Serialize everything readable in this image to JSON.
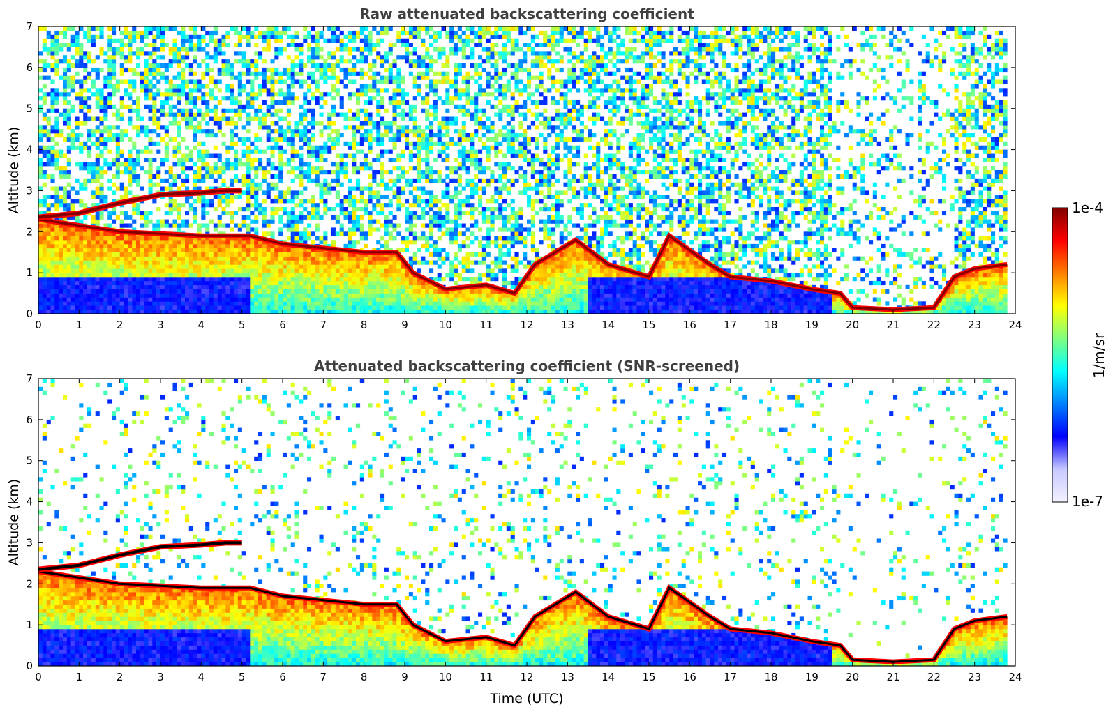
{
  "chart_data": [
    {
      "type": "heatmap",
      "title": "Raw attenuated backscattering coefficient",
      "xlabel": "",
      "ylabel": "Altitude (km)",
      "xlim": [
        0,
        24
      ],
      "ylim": [
        0,
        7
      ],
      "x_ticks": [
        0,
        1,
        2,
        3,
        4,
        5,
        6,
        7,
        8,
        9,
        10,
        11,
        12,
        13,
        14,
        15,
        16,
        17,
        18,
        19,
        20,
        21,
        22,
        23,
        24
      ],
      "y_ticks": [
        0,
        1,
        2,
        3,
        4,
        5,
        6,
        7
      ],
      "screened": false,
      "features": {
        "elevated_layer": [
          [
            0,
            2.35
          ],
          [
            1,
            2.45
          ],
          [
            2,
            2.7
          ],
          [
            3,
            2.9
          ],
          [
            4,
            2.95
          ],
          [
            4.6,
            3.0
          ],
          [
            5.0,
            3.0
          ]
        ],
        "aerosol_layer_top": [
          [
            0,
            2.3
          ],
          [
            2,
            2.0
          ],
          [
            4,
            1.9
          ],
          [
            5.2,
            1.9
          ],
          [
            6,
            1.7
          ],
          [
            7,
            1.6
          ],
          [
            8,
            1.5
          ],
          [
            8.8,
            1.5
          ],
          [
            9.2,
            1.0
          ],
          [
            10,
            0.6
          ],
          [
            11,
            0.7
          ],
          [
            11.7,
            0.5
          ],
          [
            12.2,
            1.2
          ],
          [
            13.2,
            1.8
          ],
          [
            14,
            1.2
          ],
          [
            15,
            0.9
          ],
          [
            15.5,
            1.9
          ],
          [
            16.5,
            1.2
          ],
          [
            17,
            0.9
          ],
          [
            18,
            0.8
          ],
          [
            19,
            0.6
          ],
          [
            19.7,
            0.5
          ],
          [
            20,
            0.15
          ],
          [
            21,
            0.1
          ],
          [
            22,
            0.15
          ],
          [
            22.5,
            0.9
          ],
          [
            23,
            1.1
          ],
          [
            23.8,
            1.2
          ]
        ]
      }
    },
    {
      "type": "heatmap",
      "title": "Attenuated backscattering coefficient (SNR-screened)",
      "xlabel": "Time (UTC)",
      "ylabel": "Altitude (km)",
      "xlim": [
        0,
        24
      ],
      "ylim": [
        0,
        7
      ],
      "x_ticks": [
        0,
        1,
        2,
        3,
        4,
        5,
        6,
        7,
        8,
        9,
        10,
        11,
        12,
        13,
        14,
        15,
        16,
        17,
        18,
        19,
        20,
        21,
        22,
        23,
        24
      ],
      "y_ticks": [
        0,
        1,
        2,
        3,
        4,
        5,
        6,
        7
      ],
      "screened": true
    }
  ],
  "colorbar": {
    "label": "1/m/sr",
    "max_label": "1e-4",
    "min_label": "1e-7",
    "scale": "log",
    "colormap": [
      "#f2f2ff",
      "#c8c8ff",
      "#0000ff",
      "#0080ff",
      "#00ffff",
      "#80ff80",
      "#ffff00",
      "#ff8000",
      "#ff0000",
      "#800000"
    ]
  },
  "colors": {
    "layer_core": "#000000",
    "low_signal_blue": "#0a28ff"
  }
}
